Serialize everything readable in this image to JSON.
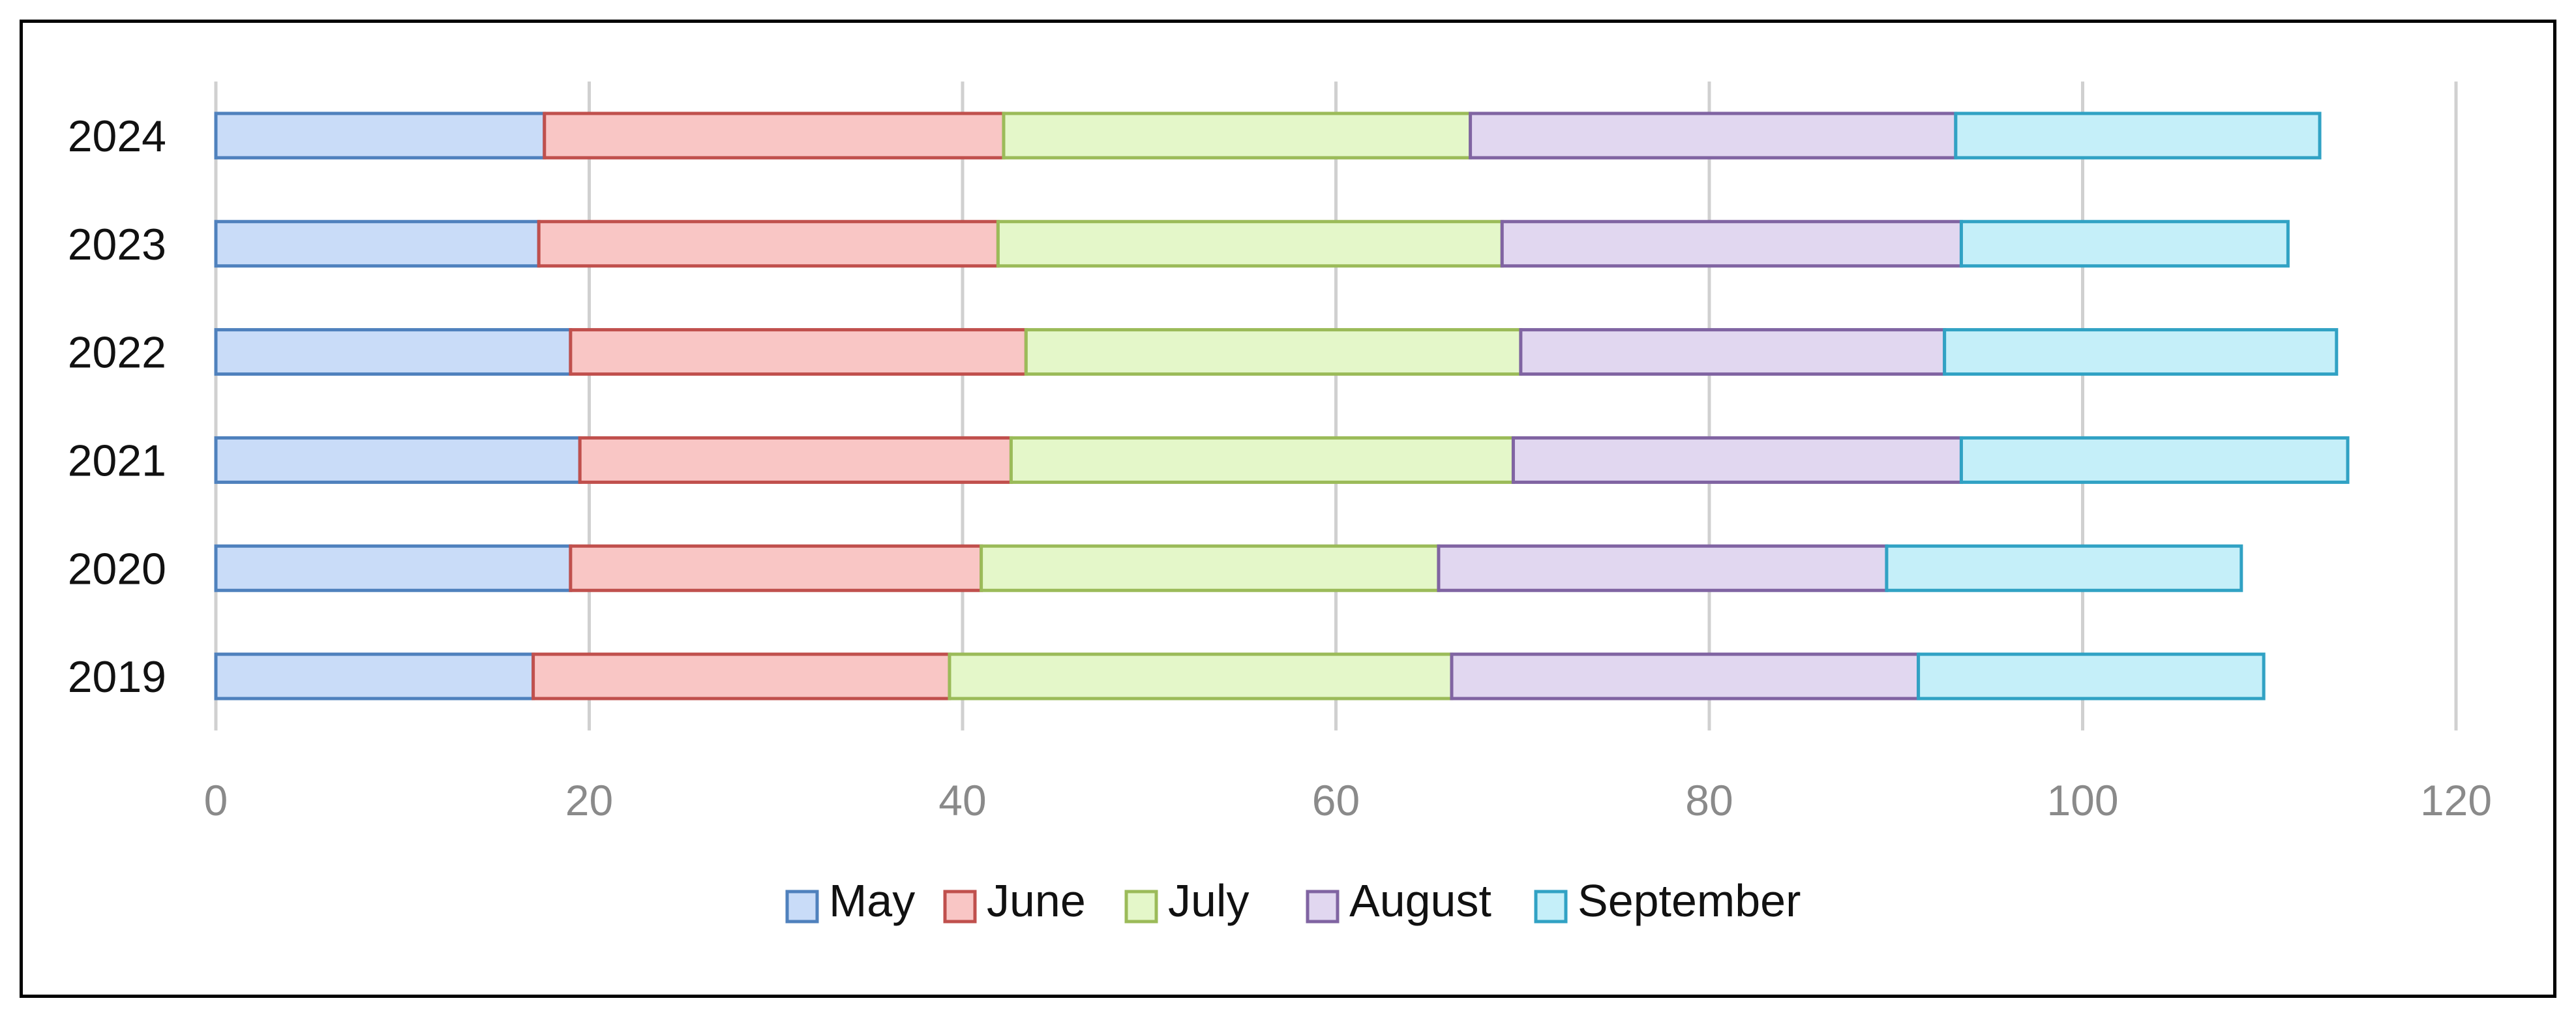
{
  "chart_data": {
    "type": "bar",
    "orientation": "horizontal",
    "stacked": true,
    "categories": [
      "2019",
      "2020",
      "2021",
      "2022",
      "2023",
      "2024"
    ],
    "series": [
      {
        "name": "May",
        "values": [
          17,
          19,
          19.5,
          19,
          17.3,
          17.6
        ],
        "color": "#c9dcf8",
        "border": "#4f81bd"
      },
      {
        "name": "June",
        "values": [
          22.3,
          22,
          23.1,
          24.4,
          24.6,
          24.6
        ],
        "color": "#f9c6c5",
        "border": "#c0504d"
      },
      {
        "name": "July",
        "values": [
          26.9,
          24.5,
          26.9,
          26.5,
          27,
          25
        ],
        "color": "#e4f7c9",
        "border": "#9bbb59"
      },
      {
        "name": "August",
        "values": [
          25,
          24,
          24,
          22.7,
          24.6,
          26
        ],
        "color": "#e1d7f0",
        "border": "#8064a2"
      },
      {
        "name": "September",
        "values": [
          18.5,
          19,
          20.7,
          21,
          17.5,
          19.5
        ],
        "color": "#c5eff9",
        "border": "#31a2c4"
      }
    ],
    "xlim": [
      0,
      120
    ],
    "xticks": [
      "0",
      "20",
      "40",
      "60",
      "80",
      "100",
      "120"
    ],
    "grid": "vertical",
    "legend": "bottom"
  }
}
